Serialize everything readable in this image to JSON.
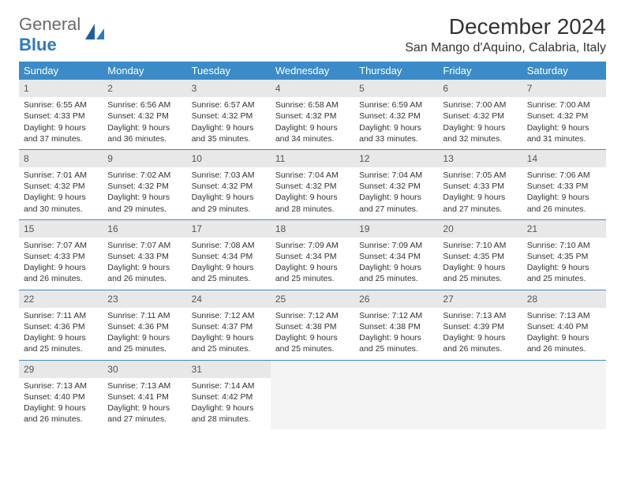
{
  "logo": {
    "word1": "General",
    "word2": "Blue"
  },
  "title": "December 2024",
  "location": "San Mango d'Aquino, Calabria, Italy",
  "colors": {
    "header_bg": "#3b8bc8",
    "header_text": "#ffffff",
    "daynum_bg": "#e8e8e8",
    "row_divider": "#3b8bc8",
    "text": "#333333",
    "logo_gray": "#6b6b6b",
    "logo_blue": "#2b7bbf",
    "empty_bg": "#f4f4f4"
  },
  "weekdays": [
    "Sunday",
    "Monday",
    "Tuesday",
    "Wednesday",
    "Thursday",
    "Friday",
    "Saturday"
  ],
  "weeks": [
    [
      {
        "n": "1",
        "sr": "Sunrise: 6:55 AM",
        "ss": "Sunset: 4:33 PM",
        "d1": "Daylight: 9 hours",
        "d2": "and 37 minutes."
      },
      {
        "n": "2",
        "sr": "Sunrise: 6:56 AM",
        "ss": "Sunset: 4:32 PM",
        "d1": "Daylight: 9 hours",
        "d2": "and 36 minutes."
      },
      {
        "n": "3",
        "sr": "Sunrise: 6:57 AM",
        "ss": "Sunset: 4:32 PM",
        "d1": "Daylight: 9 hours",
        "d2": "and 35 minutes."
      },
      {
        "n": "4",
        "sr": "Sunrise: 6:58 AM",
        "ss": "Sunset: 4:32 PM",
        "d1": "Daylight: 9 hours",
        "d2": "and 34 minutes."
      },
      {
        "n": "5",
        "sr": "Sunrise: 6:59 AM",
        "ss": "Sunset: 4:32 PM",
        "d1": "Daylight: 9 hours",
        "d2": "and 33 minutes."
      },
      {
        "n": "6",
        "sr": "Sunrise: 7:00 AM",
        "ss": "Sunset: 4:32 PM",
        "d1": "Daylight: 9 hours",
        "d2": "and 32 minutes."
      },
      {
        "n": "7",
        "sr": "Sunrise: 7:00 AM",
        "ss": "Sunset: 4:32 PM",
        "d1": "Daylight: 9 hours",
        "d2": "and 31 minutes."
      }
    ],
    [
      {
        "n": "8",
        "sr": "Sunrise: 7:01 AM",
        "ss": "Sunset: 4:32 PM",
        "d1": "Daylight: 9 hours",
        "d2": "and 30 minutes."
      },
      {
        "n": "9",
        "sr": "Sunrise: 7:02 AM",
        "ss": "Sunset: 4:32 PM",
        "d1": "Daylight: 9 hours",
        "d2": "and 29 minutes."
      },
      {
        "n": "10",
        "sr": "Sunrise: 7:03 AM",
        "ss": "Sunset: 4:32 PM",
        "d1": "Daylight: 9 hours",
        "d2": "and 29 minutes."
      },
      {
        "n": "11",
        "sr": "Sunrise: 7:04 AM",
        "ss": "Sunset: 4:32 PM",
        "d1": "Daylight: 9 hours",
        "d2": "and 28 minutes."
      },
      {
        "n": "12",
        "sr": "Sunrise: 7:04 AM",
        "ss": "Sunset: 4:32 PM",
        "d1": "Daylight: 9 hours",
        "d2": "and 27 minutes."
      },
      {
        "n": "13",
        "sr": "Sunrise: 7:05 AM",
        "ss": "Sunset: 4:33 PM",
        "d1": "Daylight: 9 hours",
        "d2": "and 27 minutes."
      },
      {
        "n": "14",
        "sr": "Sunrise: 7:06 AM",
        "ss": "Sunset: 4:33 PM",
        "d1": "Daylight: 9 hours",
        "d2": "and 26 minutes."
      }
    ],
    [
      {
        "n": "15",
        "sr": "Sunrise: 7:07 AM",
        "ss": "Sunset: 4:33 PM",
        "d1": "Daylight: 9 hours",
        "d2": "and 26 minutes."
      },
      {
        "n": "16",
        "sr": "Sunrise: 7:07 AM",
        "ss": "Sunset: 4:33 PM",
        "d1": "Daylight: 9 hours",
        "d2": "and 26 minutes."
      },
      {
        "n": "17",
        "sr": "Sunrise: 7:08 AM",
        "ss": "Sunset: 4:34 PM",
        "d1": "Daylight: 9 hours",
        "d2": "and 25 minutes."
      },
      {
        "n": "18",
        "sr": "Sunrise: 7:09 AM",
        "ss": "Sunset: 4:34 PM",
        "d1": "Daylight: 9 hours",
        "d2": "and 25 minutes."
      },
      {
        "n": "19",
        "sr": "Sunrise: 7:09 AM",
        "ss": "Sunset: 4:34 PM",
        "d1": "Daylight: 9 hours",
        "d2": "and 25 minutes."
      },
      {
        "n": "20",
        "sr": "Sunrise: 7:10 AM",
        "ss": "Sunset: 4:35 PM",
        "d1": "Daylight: 9 hours",
        "d2": "and 25 minutes."
      },
      {
        "n": "21",
        "sr": "Sunrise: 7:10 AM",
        "ss": "Sunset: 4:35 PM",
        "d1": "Daylight: 9 hours",
        "d2": "and 25 minutes."
      }
    ],
    [
      {
        "n": "22",
        "sr": "Sunrise: 7:11 AM",
        "ss": "Sunset: 4:36 PM",
        "d1": "Daylight: 9 hours",
        "d2": "and 25 minutes."
      },
      {
        "n": "23",
        "sr": "Sunrise: 7:11 AM",
        "ss": "Sunset: 4:36 PM",
        "d1": "Daylight: 9 hours",
        "d2": "and 25 minutes."
      },
      {
        "n": "24",
        "sr": "Sunrise: 7:12 AM",
        "ss": "Sunset: 4:37 PM",
        "d1": "Daylight: 9 hours",
        "d2": "and 25 minutes."
      },
      {
        "n": "25",
        "sr": "Sunrise: 7:12 AM",
        "ss": "Sunset: 4:38 PM",
        "d1": "Daylight: 9 hours",
        "d2": "and 25 minutes."
      },
      {
        "n": "26",
        "sr": "Sunrise: 7:12 AM",
        "ss": "Sunset: 4:38 PM",
        "d1": "Daylight: 9 hours",
        "d2": "and 25 minutes."
      },
      {
        "n": "27",
        "sr": "Sunrise: 7:13 AM",
        "ss": "Sunset: 4:39 PM",
        "d1": "Daylight: 9 hours",
        "d2": "and 26 minutes."
      },
      {
        "n": "28",
        "sr": "Sunrise: 7:13 AM",
        "ss": "Sunset: 4:40 PM",
        "d1": "Daylight: 9 hours",
        "d2": "and 26 minutes."
      }
    ],
    [
      {
        "n": "29",
        "sr": "Sunrise: 7:13 AM",
        "ss": "Sunset: 4:40 PM",
        "d1": "Daylight: 9 hours",
        "d2": "and 26 minutes."
      },
      {
        "n": "30",
        "sr": "Sunrise: 7:13 AM",
        "ss": "Sunset: 4:41 PM",
        "d1": "Daylight: 9 hours",
        "d2": "and 27 minutes."
      },
      {
        "n": "31",
        "sr": "Sunrise: 7:14 AM",
        "ss": "Sunset: 4:42 PM",
        "d1": "Daylight: 9 hours",
        "d2": "and 28 minutes."
      },
      {
        "empty": true
      },
      {
        "empty": true
      },
      {
        "empty": true
      },
      {
        "empty": true
      }
    ]
  ]
}
